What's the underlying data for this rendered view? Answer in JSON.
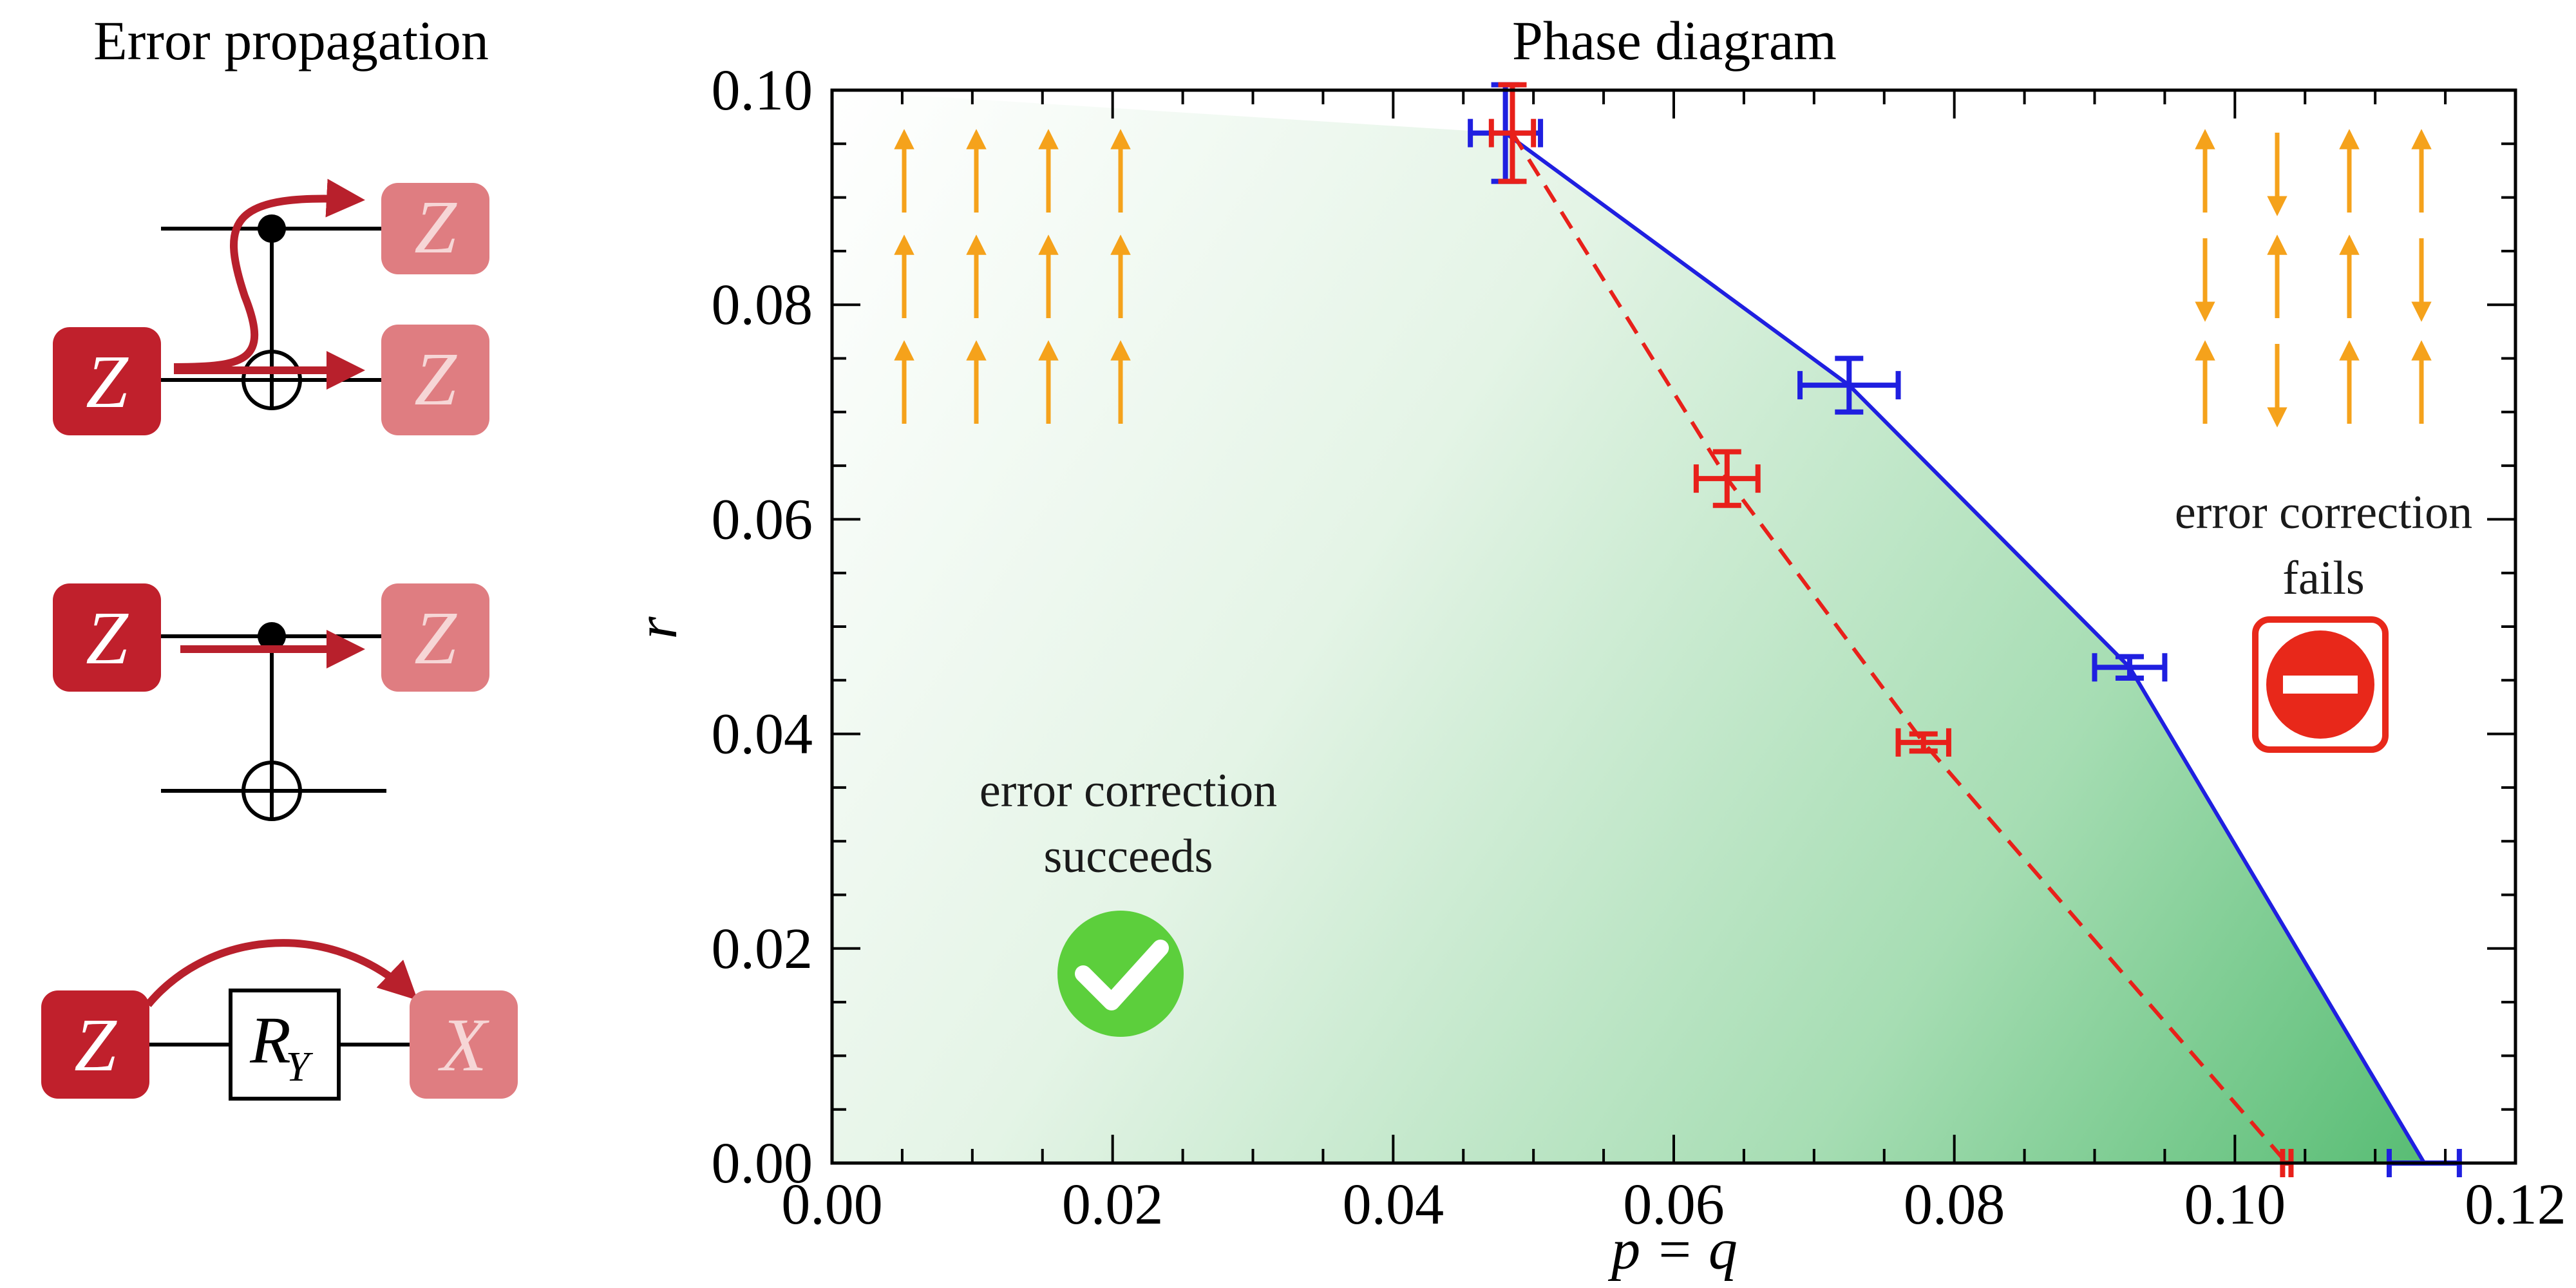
{
  "left_panel": {
    "title": "Error propagation",
    "circuits": [
      {
        "input": "Z",
        "outputs": [
          "Z",
          "Z"
        ]
      },
      {
        "input": "Z",
        "outputs": [
          "Z"
        ]
      },
      {
        "input": "Z",
        "gate": "R",
        "gate_sub": "Y",
        "outputs": [
          "X"
        ]
      }
    ]
  },
  "colors": {
    "gate_dark": "#c0202c",
    "gate_light": "#df7d81",
    "arrow": "#b8202c",
    "spin_arrow": "#f5a21b",
    "series_blue": "#1f1fe0",
    "series_red": "#e8201a",
    "region_green": "#4db86b",
    "check_green": "#5ccf3c",
    "stop_red": "#e8281a"
  },
  "annotations": {
    "succeeds_line1": "error correction",
    "succeeds_line2": "succeeds",
    "fails_line1": "error correction",
    "fails_line2": "fails",
    "succeeds_icon": "check-circle-icon",
    "fails_icon": "no-entry-icon"
  },
  "spin_grids": {
    "left": [
      [
        "up",
        "up",
        "up",
        "up"
      ],
      [
        "up",
        "up",
        "up",
        "up"
      ],
      [
        "up",
        "up",
        "up",
        "up"
      ]
    ],
    "right": [
      [
        "up",
        "down",
        "up",
        "up"
      ],
      [
        "down",
        "up",
        "up",
        "down"
      ],
      [
        "up",
        "down",
        "up",
        "up"
      ]
    ]
  },
  "chart_data": {
    "type": "scatter",
    "title": "Phase diagram",
    "xlabel": "p = q",
    "ylabel": "r",
    "xlim": [
      0.0,
      0.12
    ],
    "ylim": [
      0.0,
      0.1
    ],
    "xticks": [
      "0.00",
      "0.02",
      "0.04",
      "0.06",
      "0.08",
      "0.10",
      "0.12"
    ],
    "yticks": [
      "0.00",
      "0.02",
      "0.04",
      "0.06",
      "0.08",
      "0.10"
    ],
    "series": [
      {
        "style": "solid",
        "color": "#1f1fe0",
        "points": [
          {
            "x": 0.048,
            "y": 0.096,
            "xerr": 0.0025,
            "yerr": 0.0045
          },
          {
            "x": 0.0725,
            "y": 0.0725,
            "xerr": 0.0035,
            "yerr": 0.0025
          },
          {
            "x": 0.0925,
            "y": 0.0462,
            "xerr": 0.0025,
            "yerr": 0.001
          },
          {
            "x": 0.1135,
            "y": 0.0,
            "xerr": 0.0025,
            "yerr": 0.0
          }
        ]
      },
      {
        "style": "dashed",
        "color": "#e8201a",
        "points": [
          {
            "x": 0.0485,
            "y": 0.096,
            "xerr": 0.0015,
            "yerr": 0.0045
          },
          {
            "x": 0.0638,
            "y": 0.0638,
            "xerr": 0.0022,
            "yerr": 0.0025
          },
          {
            "x": 0.0778,
            "y": 0.0392,
            "xerr": 0.0018,
            "yerr": 0.0008
          },
          {
            "x": 0.1037,
            "y": 0.0,
            "xerr": 0.0003,
            "yerr": 0.0
          }
        ]
      }
    ],
    "grid": false,
    "legend": "none"
  }
}
